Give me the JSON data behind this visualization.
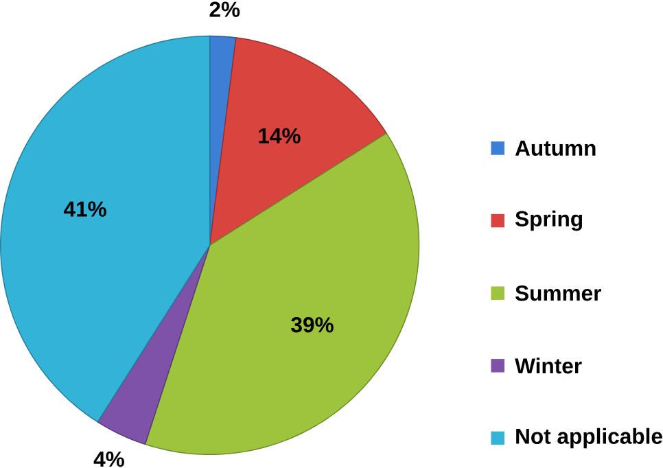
{
  "chart_data": {
    "type": "pie",
    "categories": [
      "Autumn",
      "Spring",
      "Summer",
      "Winter",
      "Not applicable"
    ],
    "values": [
      2,
      14,
      39,
      4,
      41
    ],
    "colors": [
      "#3d7fd4",
      "#d9443f",
      "#9dc43c",
      "#7e52a8",
      "#34b3d9"
    ],
    "value_labels": [
      "2%",
      "14%",
      "39%",
      "4%",
      "41%"
    ],
    "legend": "right"
  }
}
